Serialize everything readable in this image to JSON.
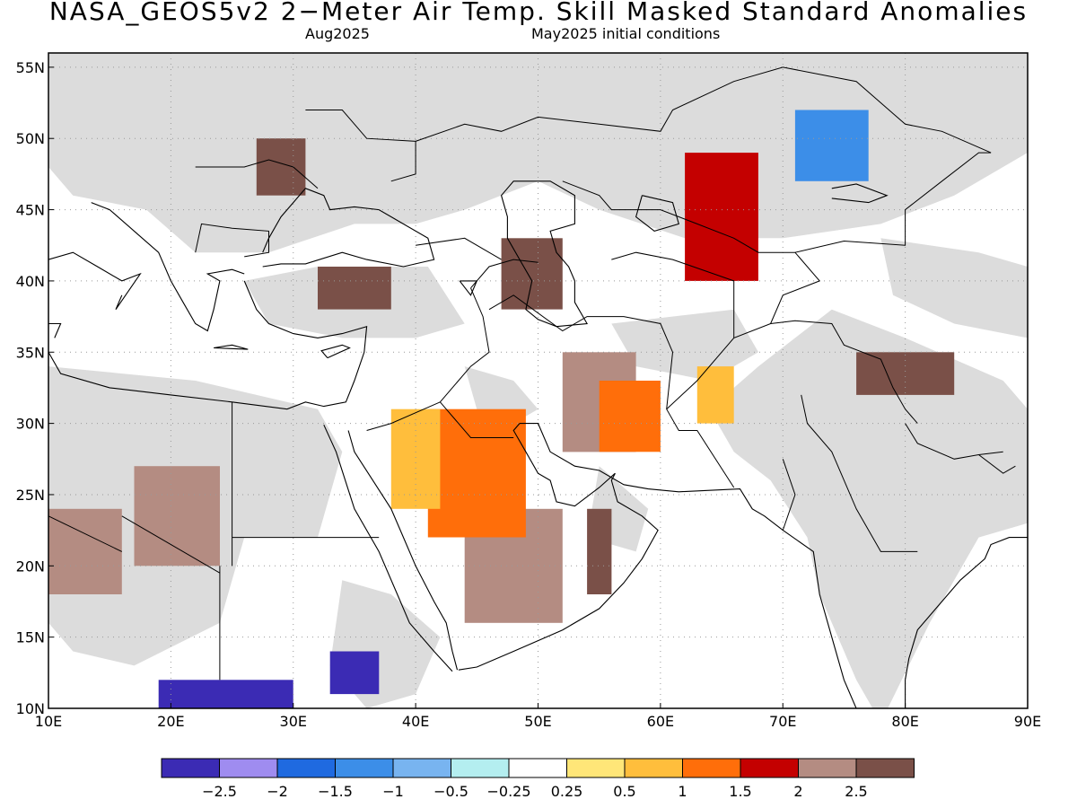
{
  "title": "NASA_GEOS5v2 2−Meter Air Temp. Skill Masked Standard Anomalies",
  "subtitle_left": "Aug2025",
  "subtitle_right": "May2025 initial conditions",
  "map": {
    "lon_range": [
      10,
      90
    ],
    "lat_range": [
      10,
      56
    ],
    "lon_ticks": [
      "10E",
      "20E",
      "30E",
      "40E",
      "50E",
      "60E",
      "70E",
      "80E",
      "90E"
    ],
    "lat_ticks": [
      "10N",
      "15N",
      "20N",
      "25N",
      "30N",
      "35N",
      "40N",
      "45N",
      "50N",
      "55N"
    ],
    "grid": "dotted",
    "masked_color": "#dcdcdc"
  },
  "colorbar": {
    "colors": [
      "#3b2bb4",
      "#9f8cf0",
      "#1f6ae0",
      "#3c8ee8",
      "#78b4f0",
      "#b4eef0",
      "#ffffff",
      "#ffe678",
      "#ffbe3c",
      "#ff6e0a",
      "#c40000",
      "#b48c82",
      "#7a5048"
    ],
    "labels": [
      "−2.5",
      "−2",
      "−1.5",
      "−1",
      "−0.5",
      "−0.25",
      "0.25",
      "0.5",
      "1",
      "1.5",
      "2",
      "2.5"
    ]
  },
  "chart_data": {
    "type": "heatmap",
    "title": "NASA_GEOS5v2 2−Meter Air Temp. Skill Masked Standard Anomalies",
    "xlabel": "",
    "ylabel": "",
    "xlim": [
      10,
      90
    ],
    "ylim": [
      10,
      56
    ],
    "regions": [
      {
        "lon": [
          10,
          90
        ],
        "lat": [
          10,
          56
        ],
        "value": "masked"
      },
      {
        "lon": [
          44,
          52
        ],
        "lat": [
          16,
          24
        ],
        "value": 2.2
      },
      {
        "lon": [
          41,
          49
        ],
        "lat": [
          22,
          31
        ],
        "value": 1.4
      },
      {
        "lon": [
          38,
          42
        ],
        "lat": [
          24,
          31
        ],
        "value": 0.8
      },
      {
        "lon": [
          17,
          24
        ],
        "lat": [
          20,
          27
        ],
        "value": 2.3
      },
      {
        "lon": [
          10,
          16
        ],
        "lat": [
          18,
          24
        ],
        "value": 2.1
      },
      {
        "lon": [
          52,
          58
        ],
        "lat": [
          28,
          35
        ],
        "value": 2.2
      },
      {
        "lon": [
          62,
          68
        ],
        "lat": [
          40,
          49
        ],
        "value": 1.5
      },
      {
        "lon": [
          71,
          77
        ],
        "lat": [
          47,
          52
        ],
        "value": -1.2
      },
      {
        "lon": [
          47,
          52
        ],
        "lat": [
          38,
          43
        ],
        "value": 2.6
      },
      {
        "lon": [
          32,
          38
        ],
        "lat": [
          38,
          41
        ],
        "value": 2.6
      },
      {
        "lon": [
          27,
          31
        ],
        "lat": [
          46,
          50
        ],
        "value": 2.7
      },
      {
        "lon": [
          19,
          30
        ],
        "lat": [
          10,
          12
        ],
        "value": -2.6
      },
      {
        "lon": [
          33,
          37
        ],
        "lat": [
          11,
          14
        ],
        "value": -2.6
      },
      {
        "lon": [
          54,
          56
        ],
        "lat": [
          18,
          24
        ],
        "value": 2.6
      },
      {
        "lon": [
          76,
          84
        ],
        "lat": [
          32,
          35
        ],
        "value": 2.6
      },
      {
        "lon": [
          63,
          66
        ],
        "lat": [
          30,
          34
        ],
        "value": 0.8
      },
      {
        "lon": [
          55,
          60
        ],
        "lat": [
          28,
          33
        ],
        "value": 1.4
      }
    ]
  }
}
